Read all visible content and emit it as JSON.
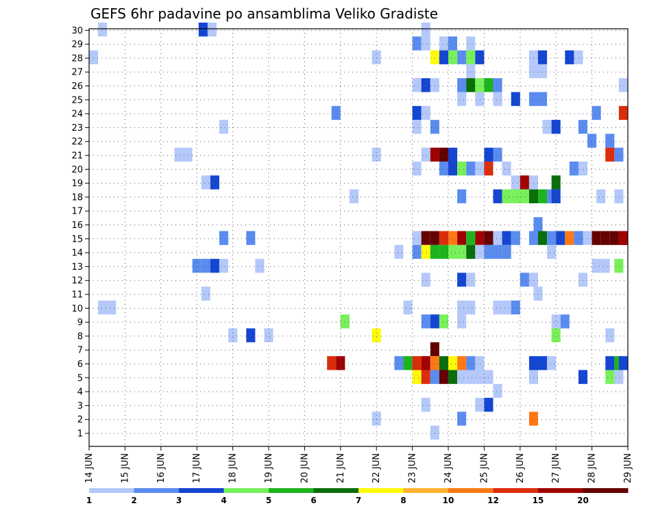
{
  "chart_data": {
    "type": "heatmap",
    "title": "GEFS 6hr padavine po ansamblima Veliko Gradiste",
    "xlabel": "",
    "ylabel": "",
    "x_ticks": [
      "14 JUN",
      "15 JUN",
      "16 JUN",
      "17 JUN",
      "18 JUN",
      "19 JUN",
      "20 JUN",
      "21 JUN",
      "22 JUN",
      "23 JUN",
      "24 JUN",
      "25 JUN",
      "26 JUN",
      "27 JUN",
      "28 JUN",
      "29 JUN"
    ],
    "y_ticks": [
      "1",
      "2",
      "3",
      "4",
      "5",
      "6",
      "7",
      "8",
      "9",
      "10",
      "11",
      "12",
      "13",
      "14",
      "15",
      "16",
      "17",
      "18",
      "19",
      "20",
      "21",
      "22",
      "23",
      "24",
      "25",
      "26",
      "27",
      "28",
      "29",
      "30"
    ],
    "xlim_steps": [
      0,
      60
    ],
    "ylim": [
      0,
      30
    ],
    "grid": true,
    "legend": {
      "placement": "bottom",
      "labels": [
        "1",
        "2",
        "3",
        "4",
        "5",
        "6",
        "7",
        "8",
        "10",
        "12",
        "15",
        "20"
      ],
      "colors": [
        "#b4c8fa",
        "#5a8cf0",
        "#1446d2",
        "#78f05a",
        "#1eb41e",
        "#0a6e0a",
        "#fffa0a",
        "#ffb432",
        "#ff7814",
        "#dc2d0a",
        "#a00000",
        "#640000"
      ]
    },
    "values_note_level_index": "cell value = index into legend.colors (0..11)",
    "cells": [
      [
        1.5,
        30,
        0
      ],
      [
        12.7,
        30,
        2
      ],
      [
        13.7,
        30,
        0
      ],
      [
        37.5,
        30,
        0
      ],
      [
        36.5,
        29,
        1
      ],
      [
        37.5,
        29,
        0
      ],
      [
        39.5,
        29,
        0
      ],
      [
        40.5,
        29,
        1
      ],
      [
        42.5,
        29,
        0
      ],
      [
        0.5,
        28,
        0
      ],
      [
        32.0,
        28,
        0
      ],
      [
        38.5,
        28,
        6
      ],
      [
        39.5,
        28,
        2
      ],
      [
        40.5,
        28,
        3
      ],
      [
        41.5,
        28,
        1
      ],
      [
        42.5,
        28,
        3
      ],
      [
        43.5,
        28,
        2
      ],
      [
        49.5,
        28,
        0
      ],
      [
        50.5,
        28,
        2
      ],
      [
        53.5,
        28,
        2
      ],
      [
        54.5,
        28,
        0
      ],
      [
        42.5,
        27,
        0
      ],
      [
        49.5,
        27,
        0
      ],
      [
        50.5,
        27,
        0
      ],
      [
        36.5,
        26,
        0
      ],
      [
        37.5,
        26,
        2
      ],
      [
        38.5,
        26,
        0
      ],
      [
        41.5,
        26,
        1
      ],
      [
        42.5,
        26,
        5
      ],
      [
        43.5,
        26,
        3
      ],
      [
        44.5,
        26,
        4
      ],
      [
        45.5,
        26,
        1
      ],
      [
        60.0,
        26,
        0
      ],
      [
        41.5,
        25,
        0
      ],
      [
        43.5,
        25,
        0
      ],
      [
        45.5,
        25,
        0
      ],
      [
        47.5,
        25,
        2
      ],
      [
        49.5,
        25,
        1
      ],
      [
        50.5,
        25,
        1
      ],
      [
        27.5,
        24,
        1
      ],
      [
        36.5,
        24,
        2
      ],
      [
        37.5,
        24,
        0
      ],
      [
        56.5,
        24,
        1
      ],
      [
        60.0,
        24,
        9
      ],
      [
        15.0,
        23,
        0
      ],
      [
        36.5,
        23,
        0
      ],
      [
        38.5,
        23,
        1
      ],
      [
        51.0,
        23,
        0
      ],
      [
        52.0,
        23,
        2
      ],
      [
        55.0,
        23,
        1
      ],
      [
        56.0,
        22,
        1
      ],
      [
        58.0,
        22,
        1
      ],
      [
        10.0,
        21,
        0
      ],
      [
        11.0,
        21,
        0
      ],
      [
        32.0,
        21,
        0
      ],
      [
        37.5,
        21,
        0
      ],
      [
        38.5,
        21,
        10
      ],
      [
        39.5,
        21,
        11
      ],
      [
        40.5,
        21,
        2
      ],
      [
        44.5,
        21,
        2
      ],
      [
        45.5,
        21,
        1
      ],
      [
        58.0,
        21,
        9
      ],
      [
        59.0,
        21,
        1
      ],
      [
        36.5,
        20,
        0
      ],
      [
        39.5,
        20,
        1
      ],
      [
        40.5,
        20,
        2
      ],
      [
        41.5,
        20,
        3
      ],
      [
        42.5,
        20,
        1
      ],
      [
        43.5,
        20,
        0
      ],
      [
        44.5,
        20,
        9
      ],
      [
        46.5,
        20,
        0
      ],
      [
        54.0,
        20,
        1
      ],
      [
        55.0,
        20,
        0
      ],
      [
        13.0,
        19,
        0
      ],
      [
        14.0,
        19,
        2
      ],
      [
        47.5,
        19,
        0
      ],
      [
        48.5,
        19,
        10
      ],
      [
        49.5,
        19,
        0
      ],
      [
        52.0,
        19,
        5
      ],
      [
        29.5,
        18,
        0
      ],
      [
        41.5,
        18,
        1
      ],
      [
        45.5,
        18,
        2
      ],
      [
        46.5,
        18,
        3
      ],
      [
        47.5,
        18,
        3
      ],
      [
        48.5,
        18,
        3
      ],
      [
        49.5,
        18,
        5
      ],
      [
        50.5,
        18,
        4
      ],
      [
        51.5,
        18,
        1
      ],
      [
        52.0,
        18,
        2
      ],
      [
        57.0,
        18,
        0
      ],
      [
        59.0,
        18,
        0
      ],
      [
        50.0,
        16,
        1
      ],
      [
        15.0,
        15,
        1
      ],
      [
        18.0,
        15,
        1
      ],
      [
        36.5,
        15,
        0
      ],
      [
        37.5,
        15,
        11
      ],
      [
        38.5,
        15,
        11
      ],
      [
        39.5,
        15,
        9
      ],
      [
        40.5,
        15,
        8
      ],
      [
        41.5,
        15,
        10
      ],
      [
        42.5,
        15,
        4
      ],
      [
        43.5,
        15,
        10
      ],
      [
        44.5,
        15,
        11
      ],
      [
        45.5,
        15,
        0
      ],
      [
        46.5,
        15,
        2
      ],
      [
        47.5,
        15,
        1
      ],
      [
        49.5,
        15,
        1
      ],
      [
        50.5,
        15,
        5
      ],
      [
        51.5,
        15,
        1
      ],
      [
        52.5,
        15,
        2
      ],
      [
        53.5,
        15,
        8
      ],
      [
        54.5,
        15,
        1
      ],
      [
        55.5,
        15,
        0
      ],
      [
        56.5,
        15,
        11
      ],
      [
        57.5,
        15,
        11
      ],
      [
        58.5,
        15,
        11
      ],
      [
        59.5,
        15,
        11
      ],
      [
        60.0,
        15,
        10
      ],
      [
        34.5,
        14,
        0
      ],
      [
        36.5,
        14,
        1
      ],
      [
        37.5,
        14,
        6
      ],
      [
        38.5,
        14,
        4
      ],
      [
        39.5,
        14,
        4
      ],
      [
        40.5,
        14,
        3
      ],
      [
        41.5,
        14,
        3
      ],
      [
        42.5,
        14,
        5
      ],
      [
        43.5,
        14,
        0
      ],
      [
        44.5,
        14,
        1
      ],
      [
        45.5,
        14,
        1
      ],
      [
        46.5,
        14,
        1
      ],
      [
        51.5,
        14,
        0
      ],
      [
        12.0,
        13,
        1
      ],
      [
        13.0,
        13,
        1
      ],
      [
        14.0,
        13,
        2
      ],
      [
        15.0,
        13,
        0
      ],
      [
        19.0,
        13,
        0
      ],
      [
        56.5,
        13,
        0
      ],
      [
        57.5,
        13,
        0
      ],
      [
        59.0,
        13,
        3
      ],
      [
        37.5,
        12,
        0
      ],
      [
        41.5,
        12,
        2
      ],
      [
        42.5,
        12,
        0
      ],
      [
        48.5,
        12,
        1
      ],
      [
        49.5,
        12,
        0
      ],
      [
        55.0,
        12,
        0
      ],
      [
        13.0,
        11,
        0
      ],
      [
        50.0,
        11,
        0
      ],
      [
        1.5,
        10,
        0
      ],
      [
        2.5,
        10,
        0
      ],
      [
        35.5,
        10,
        0
      ],
      [
        41.5,
        10,
        0
      ],
      [
        42.5,
        10,
        0
      ],
      [
        45.5,
        10,
        0
      ],
      [
        46.5,
        10,
        0
      ],
      [
        47.5,
        10,
        1
      ],
      [
        28.5,
        9,
        3
      ],
      [
        37.5,
        9,
        1
      ],
      [
        38.5,
        9,
        2
      ],
      [
        39.5,
        9,
        3
      ],
      [
        41.5,
        9,
        0
      ],
      [
        52.0,
        9,
        0
      ],
      [
        53.0,
        9,
        1
      ],
      [
        16.0,
        8,
        0
      ],
      [
        18.0,
        8,
        2
      ],
      [
        20.0,
        8,
        0
      ],
      [
        32.0,
        8,
        6
      ],
      [
        52.0,
        8,
        3
      ],
      [
        58.0,
        8,
        0
      ],
      [
        38.5,
        7,
        11
      ],
      [
        27.0,
        6,
        9
      ],
      [
        28.0,
        6,
        10
      ],
      [
        34.5,
        6,
        1
      ],
      [
        35.5,
        6,
        4
      ],
      [
        36.5,
        6,
        9
      ],
      [
        37.5,
        6,
        10
      ],
      [
        38.5,
        6,
        8
      ],
      [
        39.5,
        6,
        5
      ],
      [
        40.5,
        6,
        6
      ],
      [
        41.5,
        6,
        8
      ],
      [
        42.5,
        6,
        1
      ],
      [
        43.5,
        6,
        0
      ],
      [
        49.5,
        6,
        2
      ],
      [
        50.5,
        6,
        2
      ],
      [
        51.5,
        6,
        0
      ],
      [
        58.0,
        6,
        2
      ],
      [
        59.0,
        6,
        4
      ],
      [
        60.0,
        6,
        2
      ],
      [
        36.5,
        5,
        6
      ],
      [
        37.5,
        5,
        9
      ],
      [
        38.5,
        5,
        1
      ],
      [
        39.5,
        5,
        11
      ],
      [
        40.5,
        5,
        5
      ],
      [
        41.5,
        5,
        0
      ],
      [
        42.5,
        5,
        0
      ],
      [
        43.5,
        5,
        0
      ],
      [
        44.5,
        5,
        0
      ],
      [
        49.5,
        5,
        0
      ],
      [
        55.0,
        5,
        2
      ],
      [
        58.0,
        5,
        3
      ],
      [
        59.0,
        5,
        0
      ],
      [
        45.5,
        4,
        0
      ],
      [
        37.5,
        3,
        0
      ],
      [
        43.5,
        3,
        0
      ],
      [
        44.5,
        3,
        2
      ],
      [
        32.0,
        2,
        0
      ],
      [
        41.5,
        2,
        1
      ],
      [
        49.5,
        2,
        8
      ],
      [
        38.5,
        1,
        0
      ]
    ]
  }
}
